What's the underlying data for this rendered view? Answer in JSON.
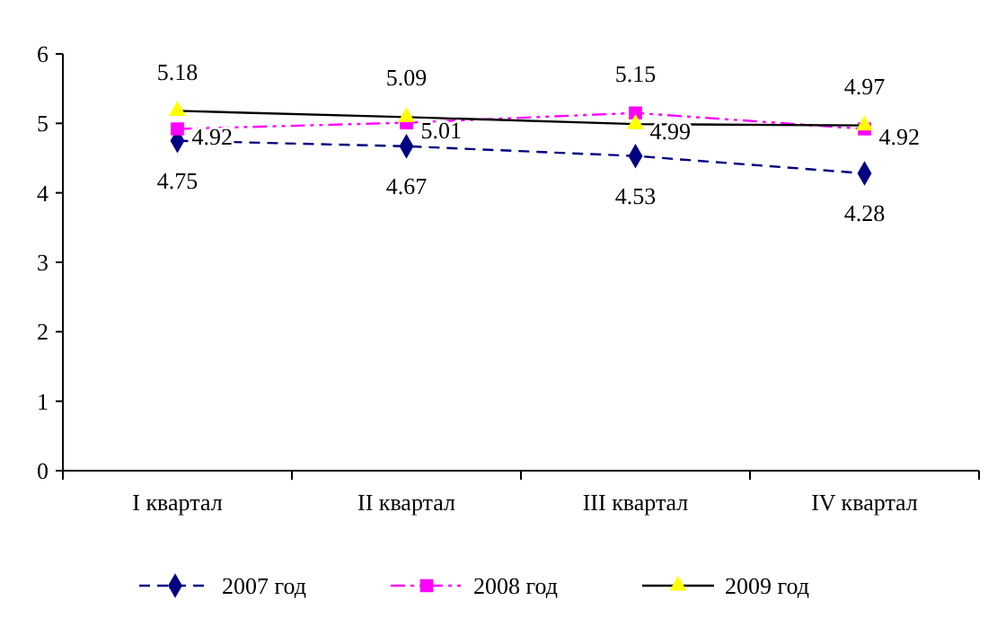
{
  "chart_data": {
    "type": "line",
    "categories": [
      "I квартал",
      "II квартал",
      "III квартал",
      "IV квартал"
    ],
    "series": [
      {
        "name": "2007 год",
        "color": "#000080",
        "values": [
          4.75,
          4.67,
          4.53,
          4.28
        ],
        "marker": "diamond",
        "line_style": "dashed"
      },
      {
        "name": "2008 год",
        "color": "#ff00ff",
        "values": [
          4.92,
          5.01,
          5.15,
          4.92
        ],
        "marker": "square",
        "line_style": "dotted"
      },
      {
        "name": "2009 год",
        "color": "#000000",
        "values": [
          5.18,
          5.09,
          4.99,
          4.97
        ],
        "marker": "triangle",
        "line_style": "solid"
      }
    ],
    "ylim": [
      0,
      6
    ],
    "yticks": [
      0,
      1,
      2,
      3,
      4,
      5,
      6
    ],
    "data_labels": true,
    "legend": "bottom",
    "grid": false
  }
}
